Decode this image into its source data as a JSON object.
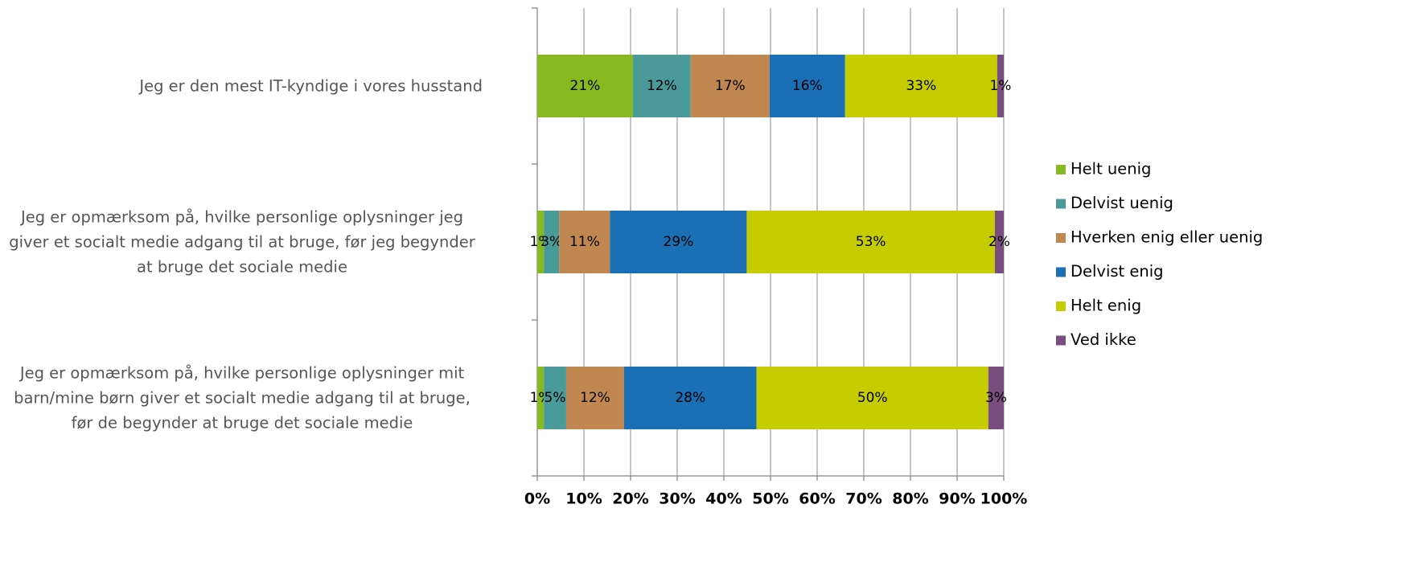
{
  "chart_data": {
    "type": "stacked_bar_horizontal",
    "categories": [
      "Jeg er den mest IT-kyndige i vores husstand",
      "Jeg er opmærksom på, hvilke personlige oplysninger jeg giver et socialt medie adgang til at bruge, før jeg begynder at bruge det sociale medie",
      "Jeg er opmærksom på, hvilke personlige oplysninger mit barn/mine børn giver et socialt medie adgang til at bruge, før de begynder at bruge det sociale medie"
    ],
    "series": [
      {
        "name": "Helt uenig",
        "color": "#86b81f",
        "values": [
          20.5,
          1.4,
          1.4
        ],
        "value_labels": [
          "21%",
          "1%",
          "1%"
        ]
      },
      {
        "name": "Delvist uenig",
        "color": "#4a9a9a",
        "values": [
          12.4,
          3.3,
          4.8
        ],
        "value_labels": [
          "12%",
          "3%",
          "5%"
        ]
      },
      {
        "name": "Hverken enig eller uenig",
        "color": "#c08850",
        "values": [
          16.9,
          10.9,
          12.4
        ],
        "value_labels": [
          "17%",
          "11%",
          "12%"
        ]
      },
      {
        "name": "Delvist enig",
        "color": "#1a6fb5",
        "values": [
          16.2,
          29.3,
          28.4
        ],
        "value_labels": [
          "16%",
          "29%",
          "28%"
        ]
      },
      {
        "name": "Helt enig",
        "color": "#c5cc00",
        "values": [
          32.6,
          53.2,
          49.7
        ],
        "value_labels": [
          "33%",
          "53%",
          "50%"
        ]
      },
      {
        "name": "Ved ikke",
        "color": "#7a4d80",
        "values": [
          1.4,
          1.9,
          3.3
        ],
        "value_labels": [
          "1%",
          "2%",
          "3%"
        ]
      }
    ],
    "xlim": [
      0,
      100
    ],
    "xticks": [
      {
        "value": 0,
        "label": "0%"
      },
      {
        "value": 10,
        "label": "10%"
      },
      {
        "value": 20,
        "label": "20%"
      },
      {
        "value": 30,
        "label": "30%"
      },
      {
        "value": 40,
        "label": "40%"
      },
      {
        "value": 50,
        "label": "50%"
      },
      {
        "value": 60,
        "label": "60%"
      },
      {
        "value": 70,
        "label": "70%"
      },
      {
        "value": 80,
        "label": "80%"
      },
      {
        "value": 90,
        "label": "90%"
      },
      {
        "value": 100,
        "label": "100%"
      }
    ],
    "grid": true,
    "legend": "right"
  }
}
